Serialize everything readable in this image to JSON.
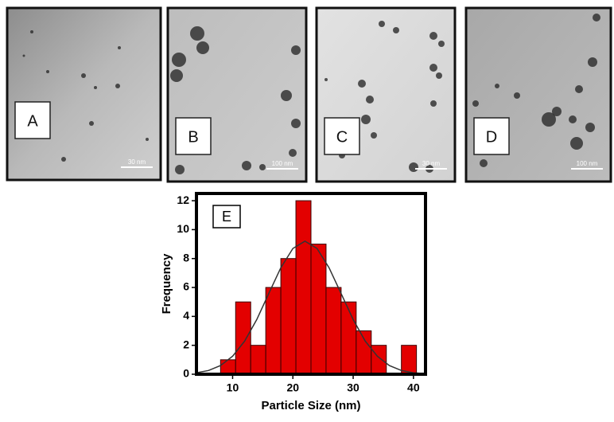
{
  "panels": [
    {
      "label": "A",
      "scale": "30 nm"
    },
    {
      "label": "B",
      "scale": "100 nm"
    },
    {
      "label": "C",
      "scale": "30 nm"
    },
    {
      "label": "D",
      "scale": "100 nm"
    }
  ],
  "chart_data": {
    "type": "histogram",
    "label": "E",
    "xlabel": "Particle Size (nm)",
    "ylabel": "Frequency",
    "bins": [
      8,
      10.5,
      13,
      15.5,
      18,
      20.5,
      23,
      25.5,
      28,
      30.5,
      33,
      35.5,
      38,
      40.5
    ],
    "values": [
      1,
      5,
      2,
      6,
      8,
      12,
      9,
      6,
      5,
      3,
      2,
      0,
      2
    ],
    "color": "#e30000",
    "edgecolor": "#3a0000",
    "curve": {
      "color": "#333333",
      "x": [
        4,
        6,
        8,
        10,
        12,
        14,
        16,
        18,
        20,
        22,
        24,
        26,
        28,
        30,
        32,
        34,
        36,
        38,
        40,
        42
      ],
      "y": [
        0.1,
        0.26,
        0.6,
        1.25,
        2.29,
        3.78,
        5.58,
        7.37,
        8.7,
        9.2,
        8.7,
        7.37,
        5.58,
        3.78,
        2.29,
        1.25,
        0.6,
        0.26,
        0.1,
        0.04
      ]
    },
    "xlim": [
      4,
      42
    ],
    "xticks": [
      10,
      20,
      30,
      40
    ],
    "ylim": [
      0,
      12.5
    ],
    "yticks": [
      0,
      2,
      4,
      6,
      8,
      10,
      12
    ]
  }
}
